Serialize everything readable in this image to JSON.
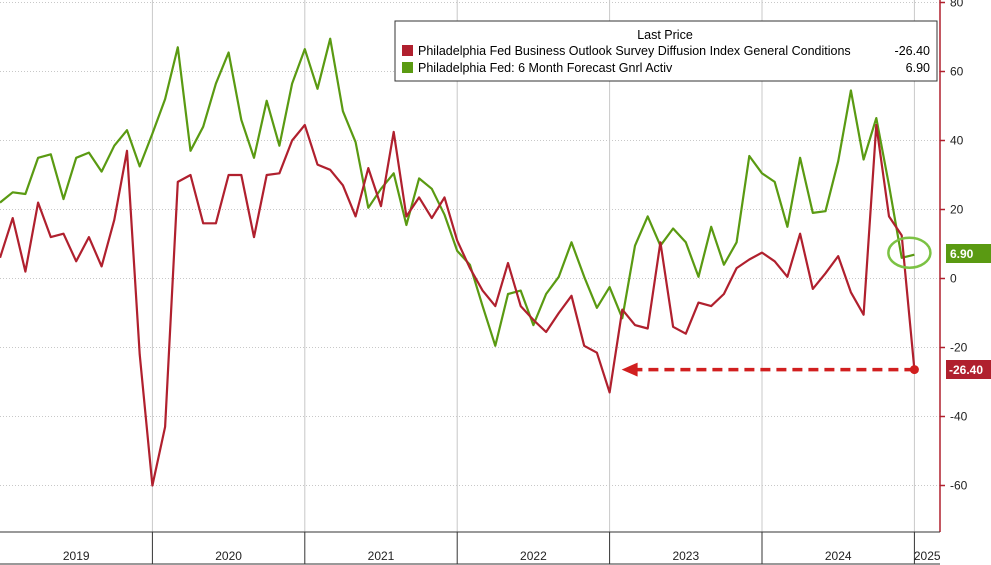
{
  "chart_data": {
    "type": "line",
    "title": "",
    "xlabel": "",
    "ylabel": "",
    "ylim": [
      -75,
      80
    ],
    "y_ticks": [
      80,
      60,
      40,
      20,
      0,
      -20,
      -40,
      -60
    ],
    "x_years": [
      "2019",
      "2020",
      "2021",
      "2022",
      "2023",
      "2024",
      "2025"
    ],
    "grid": true,
    "legend_placement": "top-right",
    "legend_header": "Last Price",
    "series": [
      {
        "name": "Philadelphia Fed Business Outlook Survey Diffusion Index General Conditions",
        "last_value": "-26.40",
        "color": "#b0202e",
        "values": [
          {
            "x": "2019-01",
            "y": 6
          },
          {
            "x": "2019-02",
            "y": 17.5
          },
          {
            "x": "2019-03",
            "y": 2
          },
          {
            "x": "2019-04",
            "y": 22
          },
          {
            "x": "2019-05",
            "y": 12
          },
          {
            "x": "2019-06",
            "y": 13
          },
          {
            "x": "2019-07",
            "y": 5
          },
          {
            "x": "2019-08",
            "y": 12
          },
          {
            "x": "2019-09",
            "y": 3.5
          },
          {
            "x": "2019-10",
            "y": 17
          },
          {
            "x": "2019-11",
            "y": 37
          },
          {
            "x": "2019-12",
            "y": -22
          },
          {
            "x": "2020-01",
            "y": -60
          },
          {
            "x": "2020-02",
            "y": -43
          },
          {
            "x": "2020-03",
            "y": 28
          },
          {
            "x": "2020-04",
            "y": 30
          },
          {
            "x": "2020-05",
            "y": 16
          },
          {
            "x": "2020-06",
            "y": 16
          },
          {
            "x": "2020-07",
            "y": 30
          },
          {
            "x": "2020-08",
            "y": 30
          },
          {
            "x": "2020-09",
            "y": 12
          },
          {
            "x": "2020-10",
            "y": 30
          },
          {
            "x": "2020-11",
            "y": 30.5
          },
          {
            "x": "2020-12",
            "y": 40
          },
          {
            "x": "2021-01",
            "y": 44.5
          },
          {
            "x": "2021-02",
            "y": 33
          },
          {
            "x": "2021-03",
            "y": 31.5
          },
          {
            "x": "2021-04",
            "y": 27
          },
          {
            "x": "2021-05",
            "y": 18
          },
          {
            "x": "2021-06",
            "y": 32
          },
          {
            "x": "2021-07",
            "y": 21
          },
          {
            "x": "2021-08",
            "y": 42.5
          },
          {
            "x": "2021-09",
            "y": 18
          },
          {
            "x": "2021-10",
            "y": 23.5
          },
          {
            "x": "2021-11",
            "y": 17.5
          },
          {
            "x": "2021-12",
            "y": 23.5
          },
          {
            "x": "2022-01",
            "y": 11
          },
          {
            "x": "2022-02",
            "y": 3
          },
          {
            "x": "2022-03",
            "y": -3.5
          },
          {
            "x": "2022-04",
            "y": -8
          },
          {
            "x": "2022-05",
            "y": 4.5
          },
          {
            "x": "2022-06",
            "y": -8
          },
          {
            "x": "2022-07",
            "y": -12
          },
          {
            "x": "2022-08",
            "y": -15.5
          },
          {
            "x": "2022-09",
            "y": -10
          },
          {
            "x": "2022-10",
            "y": -5
          },
          {
            "x": "2022-11",
            "y": -19.5
          },
          {
            "x": "2022-12",
            "y": -21.5
          },
          {
            "x": "2023-01",
            "y": -33
          },
          {
            "x": "2023-02",
            "y": -9
          },
          {
            "x": "2023-03",
            "y": -13.5
          },
          {
            "x": "2023-04",
            "y": -14.5
          },
          {
            "x": "2023-05",
            "y": 10.5
          },
          {
            "x": "2023-06",
            "y": -14
          },
          {
            "x": "2023-07",
            "y": -16
          },
          {
            "x": "2023-08",
            "y": -7
          },
          {
            "x": "2023-09",
            "y": -8
          },
          {
            "x": "2023-10",
            "y": -4.5
          },
          {
            "x": "2023-11",
            "y": 3
          },
          {
            "x": "2023-12",
            "y": 5.5
          },
          {
            "x": "2024-01",
            "y": 7.5
          },
          {
            "x": "2024-02",
            "y": 5
          },
          {
            "x": "2024-03",
            "y": 0.5
          },
          {
            "x": "2024-04",
            "y": 13
          },
          {
            "x": "2024-05",
            "y": -3
          },
          {
            "x": "2024-06",
            "y": 1.5
          },
          {
            "x": "2024-07",
            "y": 6.5
          },
          {
            "x": "2024-08",
            "y": -4
          },
          {
            "x": "2024-09",
            "y": -10.5
          },
          {
            "x": "2024-10",
            "y": 44.5
          },
          {
            "x": "2024-11",
            "y": 18
          },
          {
            "x": "2024-12",
            "y": 12.5
          },
          {
            "x": "2025-01",
            "y": -26.4
          }
        ]
      },
      {
        "name": "Philadelphia Fed: 6 Month Forecast Gnrl Activ",
        "last_value": "6.90",
        "color": "#5a9a12",
        "values": [
          {
            "x": "2019-01",
            "y": 22
          },
          {
            "x": "2019-02",
            "y": 25
          },
          {
            "x": "2019-03",
            "y": 24.5
          },
          {
            "x": "2019-04",
            "y": 35
          },
          {
            "x": "2019-05",
            "y": 36
          },
          {
            "x": "2019-06",
            "y": 23
          },
          {
            "x": "2019-07",
            "y": 35
          },
          {
            "x": "2019-08",
            "y": 36.5
          },
          {
            "x": "2019-09",
            "y": 31
          },
          {
            "x": "2019-10",
            "y": 38.5
          },
          {
            "x": "2019-11",
            "y": 43
          },
          {
            "x": "2019-12",
            "y": 32.5
          },
          {
            "x": "2020-01",
            "y": 42
          },
          {
            "x": "2020-02",
            "y": 52
          },
          {
            "x": "2020-03",
            "y": 67
          },
          {
            "x": "2020-04",
            "y": 37
          },
          {
            "x": "2020-05",
            "y": 44
          },
          {
            "x": "2020-06",
            "y": 56.5
          },
          {
            "x": "2020-07",
            "y": 65.5
          },
          {
            "x": "2020-08",
            "y": 46
          },
          {
            "x": "2020-09",
            "y": 35
          },
          {
            "x": "2020-10",
            "y": 51.5
          },
          {
            "x": "2020-11",
            "y": 38.5
          },
          {
            "x": "2020-12",
            "y": 56.5
          },
          {
            "x": "2021-01",
            "y": 66.5
          },
          {
            "x": "2021-02",
            "y": 55
          },
          {
            "x": "2021-03",
            "y": 69.5
          },
          {
            "x": "2021-04",
            "y": 48.5
          },
          {
            "x": "2021-05",
            "y": 39.5
          },
          {
            "x": "2021-06",
            "y": 20.5
          },
          {
            "x": "2021-07",
            "y": 26
          },
          {
            "x": "2021-08",
            "y": 30.5
          },
          {
            "x": "2021-09",
            "y": 15.5
          },
          {
            "x": "2021-10",
            "y": 29
          },
          {
            "x": "2021-11",
            "y": 26
          },
          {
            "x": "2021-12",
            "y": 18.5
          },
          {
            "x": "2022-01",
            "y": 8
          },
          {
            "x": "2022-02",
            "y": 4
          },
          {
            "x": "2022-03",
            "y": -8
          },
          {
            "x": "2022-04",
            "y": -19.5
          },
          {
            "x": "2022-05",
            "y": -4.5
          },
          {
            "x": "2022-06",
            "y": -3.5
          },
          {
            "x": "2022-07",
            "y": -13.5
          },
          {
            "x": "2022-08",
            "y": -4.5
          },
          {
            "x": "2022-09",
            "y": 0.5
          },
          {
            "x": "2022-10",
            "y": 10.5
          },
          {
            "x": "2022-11",
            "y": 0.5
          },
          {
            "x": "2022-12",
            "y": -8.5
          },
          {
            "x": "2023-01",
            "y": -2.5
          },
          {
            "x": "2023-02",
            "y": -11.5
          },
          {
            "x": "2023-03",
            "y": 9.5
          },
          {
            "x": "2023-04",
            "y": 18
          },
          {
            "x": "2023-05",
            "y": 9.5
          },
          {
            "x": "2023-06",
            "y": 14.5
          },
          {
            "x": "2023-07",
            "y": 10.5
          },
          {
            "x": "2023-08",
            "y": 0.5
          },
          {
            "x": "2023-09",
            "y": 15
          },
          {
            "x": "2023-10",
            "y": 4
          },
          {
            "x": "2023-11",
            "y": 10.5
          },
          {
            "x": "2023-12",
            "y": 35.5
          },
          {
            "x": "2024-01",
            "y": 30.5
          },
          {
            "x": "2024-02",
            "y": 28
          },
          {
            "x": "2024-03",
            "y": 15
          },
          {
            "x": "2024-04",
            "y": 35
          },
          {
            "x": "2024-05",
            "y": 19
          },
          {
            "x": "2024-06",
            "y": 19.5
          },
          {
            "x": "2024-07",
            "y": 34
          },
          {
            "x": "2024-08",
            "y": 54.5
          },
          {
            "x": "2024-09",
            "y": 34.5
          },
          {
            "x": "2024-10",
            "y": 46.5
          },
          {
            "x": "2024-11",
            "y": 27
          },
          {
            "x": "2024-12",
            "y": 6
          },
          {
            "x": "2025-01",
            "y": 6.9
          }
        ]
      }
    ],
    "annotations": {
      "arrow": {
        "from": {
          "x": "2025-01",
          "y": -26.4
        },
        "to": {
          "x": "2023-01",
          "y": -26.4
        },
        "color": "#d11f1f",
        "style": "dashed"
      },
      "circle": {
        "x": "2025-01",
        "y": 6.9,
        "color": "#7cc244"
      }
    }
  }
}
